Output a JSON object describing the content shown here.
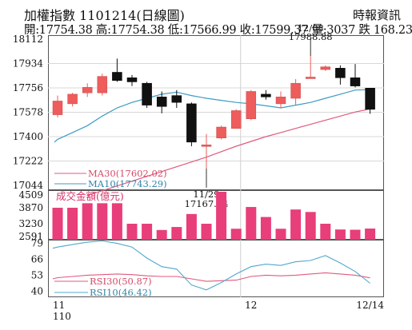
{
  "header": {
    "title": "加權指數 1101214(日線圖)",
    "source": "時報資訊",
    "stats": "開:17754.38 高:17754.38 低:17566.99 收:17599.37 量:3037 跌 168.23"
  },
  "colors": {
    "up": "#ee5c5c",
    "down": "#111111",
    "ma30": "#e05a7c",
    "ma10": "#3f9cc0",
    "volume": "#e83e7a",
    "rsi30": "#e05a7c",
    "rsi10": "#52a8cc"
  },
  "chart_data": [
    {
      "type": "candlestick",
      "ylim": [
        17044,
        18112
      ],
      "ytick_labels": [
        "18112",
        "17934",
        "17756",
        "17578",
        "17400",
        "17222",
        "17044"
      ],
      "xtick_labels": [
        {
          "label": "11",
          "sublabel": "110",
          "index": 0
        },
        {
          "label": "12",
          "index": 13
        },
        {
          "label": "12/14",
          "index": 22
        }
      ],
      "candles": [
        {
          "o": 17560,
          "h": 17700,
          "l": 17540,
          "c": 17660
        },
        {
          "o": 17640,
          "h": 17720,
          "l": 17620,
          "c": 17710
        },
        {
          "o": 17720,
          "h": 17790,
          "l": 17690,
          "c": 17760
        },
        {
          "o": 17720,
          "h": 17860,
          "l": 17700,
          "c": 17840
        },
        {
          "o": 17870,
          "h": 17970,
          "l": 17800,
          "c": 17810
        },
        {
          "o": 17830,
          "h": 17850,
          "l": 17770,
          "c": 17800
        },
        {
          "o": 17790,
          "h": 17800,
          "l": 17610,
          "c": 17630
        },
        {
          "o": 17690,
          "h": 17730,
          "l": 17570,
          "c": 17620
        },
        {
          "o": 17700,
          "h": 17740,
          "l": 17610,
          "c": 17650
        },
        {
          "o": 17640,
          "h": 17650,
          "l": 17330,
          "c": 17360
        },
        {
          "o": 17330,
          "h": 17420,
          "l": 17167.24,
          "c": 17340
        },
        {
          "o": 17390,
          "h": 17480,
          "l": 17380,
          "c": 17470
        },
        {
          "o": 17460,
          "h": 17600,
          "l": 17460,
          "c": 17590
        },
        {
          "o": 17530,
          "h": 17740,
          "l": 17520,
          "c": 17730
        },
        {
          "o": 17710,
          "h": 17740,
          "l": 17670,
          "c": 17690
        },
        {
          "o": 17640,
          "h": 17730,
          "l": 17610,
          "c": 17690
        },
        {
          "o": 17680,
          "h": 17820,
          "l": 17630,
          "c": 17790
        },
        {
          "o": 17830,
          "h": 17988.88,
          "l": 17830,
          "c": 17835
        },
        {
          "o": 17890,
          "h": 17920,
          "l": 17880,
          "c": 17910
        },
        {
          "o": 17900,
          "h": 17920,
          "l": 17780,
          "c": 17830
        },
        {
          "o": 17830,
          "h": 17930,
          "l": 17760,
          "c": 17770
        },
        {
          "o": 17754.38,
          "h": 17754.38,
          "l": 17566.99,
          "c": 17599.37
        }
      ],
      "series": [
        {
          "name": "MA30",
          "value_label": "MA30(17602.02)",
          "values": [
            null,
            null,
            null,
            null,
            null,
            null,
            null,
            null,
            null,
            null,
            17250,
            17290,
            17330,
            17365,
            17400,
            17430,
            17460,
            17490,
            17520,
            17550,
            17580,
            17602.02
          ]
        },
        {
          "name": "MA10",
          "value_label": "MA10(17743.29)",
          "values": [
            17380,
            17430,
            17480,
            17550,
            17610,
            17650,
            17680,
            17710,
            17725,
            17700,
            17680,
            17665,
            17650,
            17640,
            17625,
            17610,
            17630,
            17650,
            17680,
            17710,
            17740,
            17743.29
          ]
        }
      ],
      "annotations": [
        {
          "date": "12/08",
          "value": "17988.88",
          "index": 17
        },
        {
          "date": "11/29",
          "value": "17167.24",
          "index": 10
        }
      ]
    },
    {
      "type": "bar",
      "title": "成交金額(億元)",
      "ylim": [
        2591,
        4509
      ],
      "ytick_labels": [
        "4509",
        "3870",
        "3230",
        "2591"
      ],
      "values": [
        3870,
        3870,
        4050,
        4050,
        4050,
        3230,
        3230,
        2980,
        3100,
        3620,
        3230,
        4509,
        3030,
        3900,
        3500,
        3030,
        3800,
        3700,
        3230,
        3000,
        2990,
        3037
      ]
    },
    {
      "type": "line",
      "ylim": [
        35,
        82
      ],
      "ytick_labels": [
        "79",
        "66",
        "53",
        "40"
      ],
      "series": [
        {
          "name": "RSI30",
          "value_label": "RSI30(50.87)",
          "values": [
            51,
            52,
            53,
            53.5,
            54,
            53.5,
            52.5,
            52,
            52,
            50,
            48,
            48.5,
            49,
            52,
            53,
            52.5,
            53,
            54,
            55,
            54,
            53,
            50.87
          ]
        },
        {
          "name": "RSI10",
          "value_label": "RSI10(46.42)",
          "values": [
            76,
            78,
            80,
            81,
            79,
            76,
            67,
            60,
            58,
            45,
            41,
            47,
            54,
            60,
            62,
            61,
            64,
            65,
            69,
            63,
            56,
            46.42
          ]
        }
      ]
    }
  ]
}
